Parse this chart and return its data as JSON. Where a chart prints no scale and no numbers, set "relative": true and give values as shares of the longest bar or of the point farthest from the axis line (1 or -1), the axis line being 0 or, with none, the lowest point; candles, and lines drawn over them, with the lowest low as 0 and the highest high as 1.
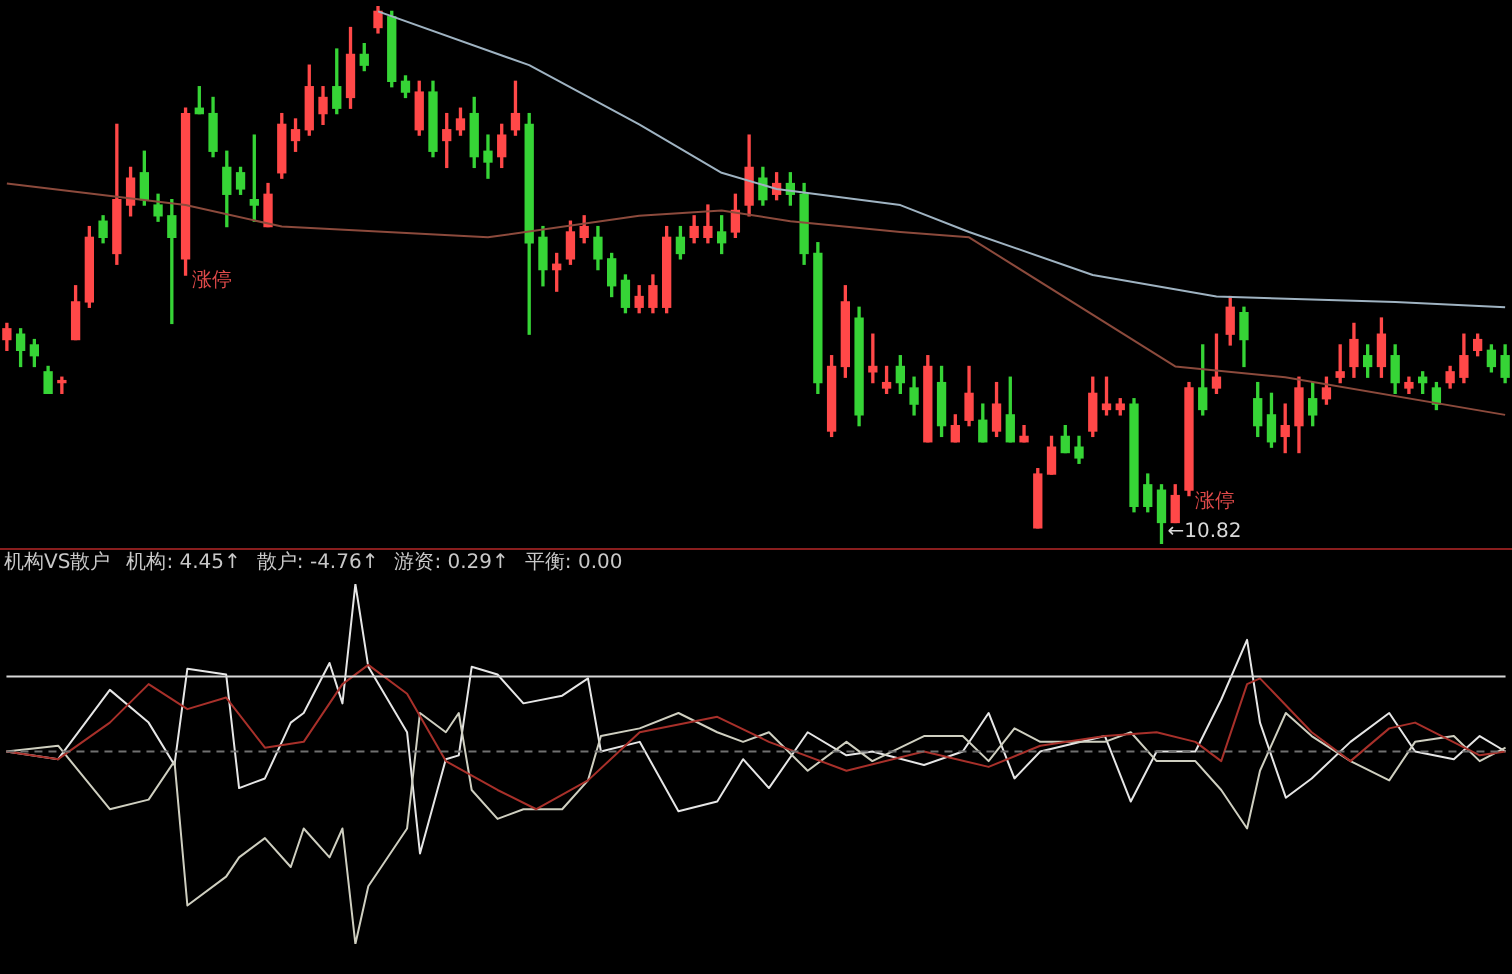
{
  "chart_data": [
    {
      "type": "candlestick",
      "relative": true,
      "tick_labels": false,
      "legend": false,
      "categories": [
        null,
        null,
        null,
        null,
        null,
        null,
        null,
        null,
        null,
        null,
        null,
        null,
        null,
        null,
        null,
        null,
        null,
        null,
        null,
        null,
        null,
        null,
        null,
        null,
        null,
        null,
        null,
        null,
        null,
        null,
        null,
        null,
        null,
        null,
        null,
        null,
        null,
        null,
        null,
        null,
        null,
        null,
        null,
        null,
        null,
        null,
        null,
        null,
        null,
        null,
        null,
        null,
        null,
        null,
        null,
        null,
        null,
        null,
        null,
        null,
        null,
        null,
        null,
        null,
        null,
        null,
        null,
        null,
        null,
        null,
        null,
        null,
        null,
        null,
        null,
        null,
        null,
        null,
        null,
        null,
        null,
        null,
        null,
        null,
        null,
        null,
        null,
        null,
        null,
        null,
        null,
        null,
        null,
        null,
        null,
        null,
        null,
        null,
        null,
        null,
        null,
        null,
        null,
        null,
        null,
        null,
        null,
        null,
        null,
        null
      ],
      "ohlc": [
        [
          0.38,
          0.41,
          0.36,
          0.4
        ],
        [
          0.39,
          0.4,
          0.33,
          0.36
        ],
        [
          0.37,
          0.38,
          0.33,
          0.35
        ],
        [
          0.32,
          0.33,
          0.28,
          0.28
        ],
        [
          0.3,
          0.31,
          0.28,
          0.3
        ],
        [
          0.38,
          0.48,
          0.38,
          0.45
        ],
        [
          0.45,
          0.59,
          0.44,
          0.57
        ],
        [
          0.6,
          0.61,
          0.56,
          0.57
        ],
        [
          0.54,
          0.78,
          0.52,
          0.64
        ],
        [
          0.63,
          0.7,
          0.61,
          0.68
        ],
        [
          0.69,
          0.73,
          0.63,
          0.64
        ],
        [
          0.63,
          0.65,
          0.6,
          0.61
        ],
        [
          0.61,
          0.64,
          0.41,
          0.57
        ],
        [
          0.53,
          0.81,
          0.5,
          0.8
        ],
        [
          0.81,
          0.85,
          0.8,
          0.8
        ],
        [
          0.8,
          0.83,
          0.72,
          0.73
        ],
        [
          0.7,
          0.73,
          0.59,
          0.65
        ],
        [
          0.69,
          0.7,
          0.65,
          0.66
        ],
        [
          0.64,
          0.76,
          0.6,
          0.63
        ],
        [
          0.59,
          0.67,
          0.59,
          0.65
        ],
        [
          0.69,
          0.8,
          0.68,
          0.78
        ],
        [
          0.75,
          0.79,
          0.73,
          0.77
        ],
        [
          0.77,
          0.89,
          0.76,
          0.85
        ],
        [
          0.8,
          0.85,
          0.78,
          0.83
        ],
        [
          0.85,
          0.92,
          0.8,
          0.81
        ],
        [
          0.83,
          0.96,
          0.81,
          0.91
        ],
        [
          0.91,
          0.93,
          0.88,
          0.89
        ],
        [
          0.96,
          1.0,
          0.95,
          0.99
        ],
        [
          0.98,
          0.99,
          0.85,
          0.86
        ],
        [
          0.86,
          0.87,
          0.83,
          0.84
        ],
        [
          0.77,
          0.86,
          0.76,
          0.84
        ],
        [
          0.84,
          0.86,
          0.72,
          0.73
        ],
        [
          0.75,
          0.8,
          0.7,
          0.77
        ],
        [
          0.77,
          0.81,
          0.76,
          0.79
        ],
        [
          0.8,
          0.83,
          0.7,
          0.72
        ],
        [
          0.73,
          0.76,
          0.68,
          0.71
        ],
        [
          0.72,
          0.78,
          0.7,
          0.76
        ],
        [
          0.77,
          0.86,
          0.76,
          0.8
        ],
        [
          0.78,
          0.8,
          0.39,
          0.56
        ],
        [
          0.57,
          0.59,
          0.48,
          0.51
        ],
        [
          0.51,
          0.54,
          0.47,
          0.52
        ],
        [
          0.53,
          0.6,
          0.52,
          0.58
        ],
        [
          0.57,
          0.61,
          0.56,
          0.59
        ],
        [
          0.57,
          0.59,
          0.51,
          0.53
        ],
        [
          0.53,
          0.54,
          0.46,
          0.48
        ],
        [
          0.49,
          0.5,
          0.43,
          0.44
        ],
        [
          0.44,
          0.48,
          0.43,
          0.46
        ],
        [
          0.44,
          0.5,
          0.43,
          0.48
        ],
        [
          0.44,
          0.59,
          0.43,
          0.57
        ],
        [
          0.57,
          0.59,
          0.53,
          0.54
        ],
        [
          0.57,
          0.61,
          0.56,
          0.59
        ],
        [
          0.57,
          0.63,
          0.56,
          0.59
        ],
        [
          0.58,
          0.61,
          0.54,
          0.56
        ],
        [
          0.58,
          0.65,
          0.57,
          0.62
        ],
        [
          0.63,
          0.76,
          0.61,
          0.7
        ],
        [
          0.68,
          0.7,
          0.63,
          0.64
        ],
        [
          0.65,
          0.69,
          0.64,
          0.67
        ],
        [
          0.67,
          0.69,
          0.63,
          0.65
        ],
        [
          0.65,
          0.67,
          0.52,
          0.54
        ],
        [
          0.54,
          0.56,
          0.28,
          0.3
        ],
        [
          0.21,
          0.35,
          0.2,
          0.33
        ],
        [
          0.33,
          0.48,
          0.31,
          0.45
        ],
        [
          0.42,
          0.44,
          0.22,
          0.24
        ],
        [
          0.32,
          0.39,
          0.3,
          0.33
        ],
        [
          0.29,
          0.33,
          0.28,
          0.3
        ],
        [
          0.33,
          0.35,
          0.28,
          0.3
        ],
        [
          0.29,
          0.31,
          0.24,
          0.26
        ],
        [
          0.19,
          0.35,
          0.19,
          0.33
        ],
        [
          0.3,
          0.33,
          0.2,
          0.22
        ],
        [
          0.19,
          0.24,
          0.19,
          0.22
        ],
        [
          0.23,
          0.33,
          0.22,
          0.28
        ],
        [
          0.23,
          0.26,
          0.19,
          0.19
        ],
        [
          0.21,
          0.3,
          0.2,
          0.26
        ],
        [
          0.24,
          0.31,
          0.19,
          0.19
        ],
        [
          0.19,
          0.22,
          0.19,
          0.2
        ],
        [
          0.03,
          0.14,
          0.03,
          0.13
        ],
        [
          0.13,
          0.2,
          0.13,
          0.18
        ],
        [
          0.2,
          0.22,
          0.17,
          0.17
        ],
        [
          0.18,
          0.2,
          0.15,
          0.16
        ],
        [
          0.21,
          0.31,
          0.2,
          0.28
        ],
        [
          0.25,
          0.31,
          0.24,
          0.26
        ],
        [
          0.25,
          0.27,
          0.24,
          0.26
        ],
        [
          0.26,
          0.27,
          0.06,
          0.07
        ],
        [
          0.11,
          0.13,
          0.06,
          0.07
        ],
        [
          0.1,
          0.11,
          0.0,
          0.04
        ],
        [
          0.04,
          0.11,
          0.04,
          0.09
        ],
        [
          0.1,
          0.3,
          0.09,
          0.29
        ],
        [
          0.29,
          0.37,
          0.24,
          0.25
        ],
        [
          0.29,
          0.39,
          0.28,
          0.31
        ],
        [
          0.39,
          0.46,
          0.37,
          0.44
        ],
        [
          0.43,
          0.44,
          0.33,
          0.38
        ],
        [
          0.27,
          0.3,
          0.2,
          0.22
        ],
        [
          0.24,
          0.28,
          0.18,
          0.19
        ],
        [
          0.2,
          0.26,
          0.17,
          0.22
        ],
        [
          0.22,
          0.31,
          0.17,
          0.29
        ],
        [
          0.27,
          0.3,
          0.22,
          0.24
        ],
        [
          0.27,
          0.31,
          0.26,
          0.29
        ],
        [
          0.31,
          0.37,
          0.3,
          0.32
        ],
        [
          0.33,
          0.41,
          0.31,
          0.38
        ],
        [
          0.35,
          0.37,
          0.31,
          0.33
        ],
        [
          0.33,
          0.42,
          0.31,
          0.39
        ],
        [
          0.35,
          0.37,
          0.28,
          0.3
        ],
        [
          0.29,
          0.31,
          0.28,
          0.3
        ],
        [
          0.31,
          0.32,
          0.28,
          0.3
        ],
        [
          0.29,
          0.3,
          0.25,
          0.26
        ],
        [
          0.3,
          0.33,
          0.29,
          0.32
        ],
        [
          0.31,
          0.39,
          0.3,
          0.35
        ],
        [
          0.36,
          0.39,
          0.35,
          0.38
        ],
        [
          0.36,
          0.37,
          0.32,
          0.33
        ],
        [
          0.35,
          0.37,
          0.3,
          0.31
        ]
      ],
      "value_labels": [
        null,
        null,
        null,
        null,
        null,
        null,
        null,
        null,
        null,
        null,
        null,
        null,
        null,
        "涨停",
        null,
        null,
        null,
        null,
        null,
        null,
        null,
        null,
        null,
        null,
        null,
        null,
        null,
        null,
        null,
        null,
        null,
        null,
        null,
        null,
        null,
        null,
        null,
        null,
        null,
        null,
        null,
        null,
        null,
        null,
        null,
        null,
        null,
        null,
        null,
        null,
        null,
        null,
        null,
        null,
        null,
        null,
        null,
        null,
        null,
        null,
        null,
        null,
        null,
        null,
        null,
        null,
        null,
        null,
        null,
        null,
        null,
        null,
        null,
        null,
        null,
        null,
        null,
        null,
        null,
        null,
        null,
        null,
        null,
        null,
        "←10.82",
        null,
        "涨停",
        null,
        null,
        null,
        null,
        null,
        null,
        null,
        null,
        null,
        null,
        null,
        null,
        null,
        null,
        null,
        null,
        null,
        null,
        null,
        null,
        null,
        null,
        null
      ],
      "series": [
        {
          "type": "line",
          "color": "#9fb3c2",
          "values": [
            null,
            null,
            null,
            null,
            null,
            null,
            null,
            null,
            null,
            null,
            null,
            null,
            null,
            null,
            null,
            null,
            null,
            null,
            null,
            null,
            null,
            null,
            null,
            null,
            null,
            null,
            null,
            0.99,
            null,
            null,
            null,
            null,
            null,
            null,
            null,
            null,
            null,
            null,
            0.89,
            null,
            null,
            null,
            null,
            null,
            null,
            null,
            0.78,
            null,
            null,
            null,
            null,
            null,
            0.69,
            null,
            null,
            null,
            0.66,
            null,
            null,
            null,
            null,
            null,
            null,
            null,
            null,
            0.63,
            null,
            null,
            null,
            null,
            0.58,
            null,
            null,
            null,
            null,
            null,
            null,
            null,
            null,
            0.5,
            null,
            null,
            null,
            null,
            null,
            null,
            null,
            null,
            0.46,
            null,
            null,
            null,
            null,
            null,
            null,
            null,
            null,
            null,
            null,
            null,
            null,
            0.45,
            null,
            null,
            null,
            null,
            null,
            null,
            null,
            0.44
          ]
        },
        {
          "type": "line",
          "color": "#8c4a3c",
          "values": [
            0.67,
            null,
            null,
            null,
            null,
            null,
            null,
            null,
            null,
            null,
            null,
            null,
            null,
            0.63,
            null,
            null,
            null,
            null,
            null,
            null,
            0.59,
            null,
            null,
            null,
            null,
            null,
            null,
            null,
            null,
            null,
            null,
            null,
            null,
            null,
            null,
            0.57,
            null,
            null,
            null,
            null,
            null,
            null,
            null,
            null,
            null,
            null,
            0.61,
            null,
            null,
            null,
            null,
            null,
            0.62,
            null,
            null,
            null,
            null,
            0.6,
            null,
            null,
            null,
            null,
            null,
            null,
            null,
            0.58,
            null,
            null,
            null,
            null,
            0.57,
            null,
            null,
            null,
            null,
            null,
            null,
            null,
            null,
            null,
            null,
            null,
            null,
            null,
            null,
            0.33,
            null,
            null,
            null,
            null,
            null,
            null,
            null,
            0.31,
            null,
            null,
            null,
            null,
            null,
            null,
            null,
            null,
            null,
            null,
            null,
            null,
            null,
            null,
            null,
            0.24
          ]
        }
      ]
    },
    {
      "type": "line",
      "relative": true,
      "tick_labels": false,
      "legend": false,
      "title": "机构VS散户",
      "annotations": [
        "机构: 4.45↑",
        "散户: -4.76↑",
        "游资: 0.29↑",
        "平衡: 0.00"
      ],
      "categories": [
        null,
        null,
        null,
        null,
        null,
        null,
        null,
        null,
        null,
        null,
        null,
        null,
        null,
        null,
        null,
        null,
        null,
        null,
        null,
        null,
        null,
        null,
        null,
        null,
        null,
        null,
        null,
        null,
        null,
        null,
        null,
        null,
        null,
        null,
        null,
        null,
        null,
        null,
        null,
        null,
        null,
        null,
        null,
        null,
        null,
        null,
        null,
        null,
        null,
        null,
        null,
        null,
        null,
        null,
        null,
        null,
        null,
        null,
        null,
        null,
        null,
        null,
        null,
        null,
        null,
        null,
        null,
        null,
        null,
        null,
        null,
        null,
        null,
        null,
        null,
        null,
        null,
        null,
        null,
        null,
        null,
        null,
        null,
        null,
        null,
        null,
        null,
        null,
        null,
        null,
        null,
        null,
        null,
        null,
        null,
        null,
        null,
        null,
        null,
        null,
        null,
        null,
        null,
        null,
        null,
        null,
        null,
        null,
        null,
        null,
        null,
        null,
        null,
        null,
        null,
        null,
        null
      ],
      "series": [
        {
          "color": "#d8d8d8",
          "values": [
            0.39,
            null,
            null,
            null,
            null,
            null,
            null,
            null,
            null,
            null,
            null,
            null,
            null,
            null,
            null,
            null,
            null,
            null,
            null,
            null,
            null,
            null,
            null,
            null,
            null,
            null,
            null,
            null,
            null,
            null,
            null,
            null,
            null,
            null,
            null,
            null,
            null,
            null,
            null,
            null,
            null,
            null,
            null,
            null,
            null,
            null,
            null,
            null,
            null,
            null,
            null,
            null,
            null,
            null,
            null,
            null,
            null,
            null,
            null,
            null,
            null,
            null,
            null,
            null,
            null,
            null,
            null,
            null,
            null,
            null,
            null,
            null,
            null,
            null,
            null,
            null,
            null,
            null,
            null,
            null,
            null,
            null,
            null,
            null,
            null,
            null,
            null,
            null,
            null,
            null,
            null,
            null,
            null,
            null,
            null,
            null,
            null,
            null,
            null,
            null,
            null,
            null,
            null,
            null,
            null,
            null,
            null,
            null,
            null,
            null,
            null,
            null,
            null,
            null,
            null,
            null,
            0.39
          ]
        },
        {
          "color": "#707070",
          "line_style": "dashed",
          "values": [
            0,
            null,
            null,
            null,
            null,
            null,
            null,
            null,
            null,
            null,
            null,
            null,
            null,
            null,
            null,
            null,
            null,
            null,
            null,
            null,
            null,
            null,
            null,
            null,
            null,
            null,
            null,
            null,
            null,
            null,
            null,
            null,
            null,
            null,
            null,
            null,
            null,
            null,
            null,
            null,
            null,
            null,
            null,
            null,
            null,
            null,
            null,
            null,
            null,
            null,
            null,
            null,
            null,
            null,
            null,
            null,
            null,
            null,
            null,
            null,
            null,
            null,
            null,
            null,
            null,
            null,
            null,
            null,
            null,
            null,
            null,
            null,
            null,
            null,
            null,
            null,
            null,
            null,
            null,
            null,
            null,
            null,
            null,
            null,
            null,
            null,
            null,
            null,
            null,
            null,
            null,
            null,
            null,
            null,
            null,
            null,
            null,
            null,
            null,
            null,
            null,
            null,
            null,
            null,
            null,
            null,
            null,
            null,
            null,
            null,
            null,
            null,
            null,
            null,
            null,
            null,
            0
          ]
        },
        {
          "color": "#a8302a",
          "values": [
            0,
            null,
            null,
            null,
            -0.04,
            null,
            null,
            null,
            0.15,
            null,
            null,
            0.35,
            null,
            null,
            0.22,
            null,
            null,
            0.28,
            null,
            null,
            0.02,
            null,
            null,
            0.05,
            null,
            null,
            0.35,
            null,
            0.45,
            null,
            null,
            0.3,
            null,
            null,
            -0.05,
            null,
            null,
            null,
            -0.2,
            null,
            null,
            -0.3,
            null,
            null,
            null,
            -0.15,
            null,
            null,
            null,
            0.1,
            null,
            null,
            null,
            null,
            null,
            0.18,
            null,
            null,
            null,
            0.05,
            null,
            null,
            null,
            null,
            null,
            -0.1,
            null,
            null,
            null,
            null,
            null,
            0,
            null,
            null,
            null,
            null,
            -0.08,
            null,
            null,
            null,
            0.03,
            null,
            null,
            null,
            null,
            0.08,
            null,
            null,
            null,
            0.1,
            null,
            null,
            0.05,
            null,
            -0.05,
            null,
            0.35,
            0.38,
            null,
            null,
            null,
            0.1,
            null,
            null,
            -0.05,
            null,
            null,
            0.12,
            null,
            0.15,
            null,
            null,
            null,
            null,
            -0.02,
            null,
            0
          ]
        },
        {
          "color": "#cfcfc0",
          "values": [
            0,
            null,
            null,
            null,
            0.03,
            null,
            null,
            null,
            -0.3,
            null,
            null,
            -0.25,
            null,
            -0.05,
            -0.8,
            null,
            null,
            -0.65,
            -0.55,
            null,
            -0.45,
            null,
            -0.6,
            -0.4,
            null,
            -0.55,
            -0.4,
            -1,
            -0.7,
            null,
            null,
            -0.4,
            0.2,
            null,
            0.1,
            0.2,
            -0.2,
            null,
            -0.35,
            null,
            -0.3,
            null,
            null,
            -0.3,
            null,
            -0.15,
            0.08,
            null,
            null,
            0.12,
            null,
            null,
            0.2,
            null,
            null,
            0.1,
            null,
            0.05,
            null,
            0.1,
            null,
            null,
            -0.1,
            null,
            null,
            0.05,
            null,
            -0.05,
            null,
            null,
            null,
            0.08,
            null,
            null,
            0.08,
            null,
            -0.05,
            null,
            0.12,
            null,
            0.05,
            null,
            null,
            null,
            null,
            0.05,
            null,
            0.1,
            null,
            -0.05,
            null,
            null,
            -0.05,
            null,
            -0.2,
            null,
            -0.4,
            -0.1,
            null,
            0.2,
            null,
            0.08,
            null,
            null,
            -0.05,
            null,
            null,
            -0.15,
            null,
            0.05,
            null,
            null,
            0.08,
            null,
            -0.05,
            null,
            0.02
          ]
        },
        {
          "color": "#e6e6e6",
          "values": [
            0,
            null,
            null,
            null,
            -0.04,
            null,
            null,
            null,
            0.32,
            null,
            null,
            0.15,
            null,
            -0.07,
            0.43,
            null,
            null,
            0.4,
            -0.19,
            null,
            -0.14,
            null,
            0.15,
            0.2,
            null,
            0.46,
            0.25,
            0.87,
            0.44,
            null,
            null,
            0.1,
            -0.53,
            null,
            -0.04,
            -0.02,
            0.44,
            null,
            0.4,
            null,
            0.25,
            null,
            null,
            0.29,
            null,
            0.38,
            0,
            null,
            null,
            0.05,
            null,
            null,
            -0.31,
            null,
            null,
            -0.26,
            null,
            -0.04,
            null,
            -0.19,
            null,
            null,
            0.1,
            null,
            null,
            -0.02,
            null,
            0,
            null,
            null,
            null,
            -0.07,
            null,
            null,
            0,
            null,
            0.2,
            null,
            -0.14,
            null,
            0,
            null,
            null,
            null,
            null,
            0.08,
            null,
            -0.26,
            null,
            0,
            null,
            null,
            0,
            null,
            0.27,
            null,
            0.58,
            0.15,
            null,
            -0.24,
            null,
            -0.14,
            null,
            null,
            0.05,
            null,
            null,
            0.2,
            null,
            0,
            null,
            null,
            -0.04,
            null,
            0.08,
            null,
            0
          ]
        }
      ]
    }
  ]
}
